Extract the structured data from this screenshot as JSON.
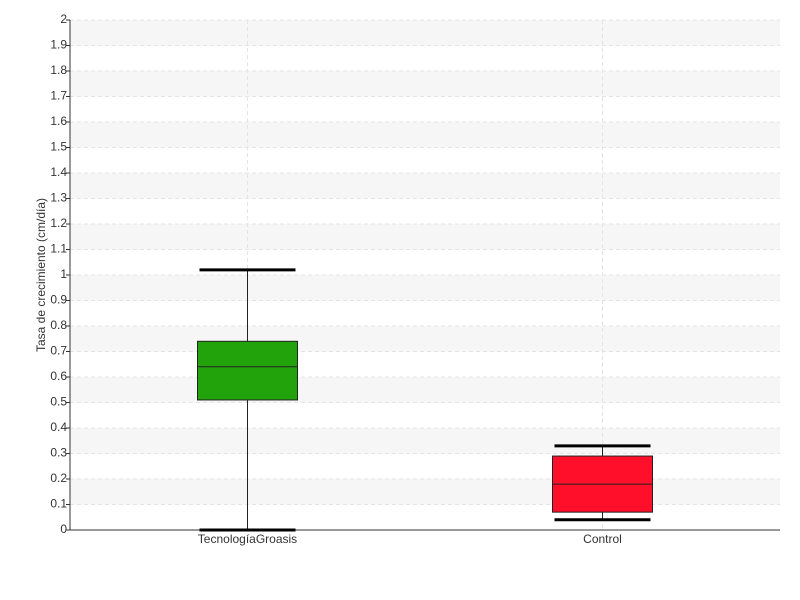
{
  "chart_data": {
    "type": "box",
    "y_label": "Tasa de crecimiento (cm/día)",
    "categories": [
      "TecnologíaGroasis",
      "Control"
    ],
    "boxes": [
      {
        "whisker_low": 0.0,
        "q1": 0.51,
        "median": 0.64,
        "q3": 0.74,
        "whisker_high": 1.02,
        "color": "#22a30c"
      },
      {
        "whisker_low": 0.04,
        "q1": 0.07,
        "median": 0.18,
        "q3": 0.29,
        "whisker_high": 0.33,
        "color": "#ff0f2a"
      }
    ],
    "ylim": [
      0,
      2
    ],
    "yticks": [
      0,
      0.1,
      0.2,
      0.3,
      0.4,
      0.5,
      0.6,
      0.7,
      0.8,
      0.9,
      1,
      1.1,
      1.2,
      1.3,
      1.4,
      1.5,
      1.6,
      1.7,
      1.8,
      1.9,
      2
    ],
    "grid": true
  }
}
